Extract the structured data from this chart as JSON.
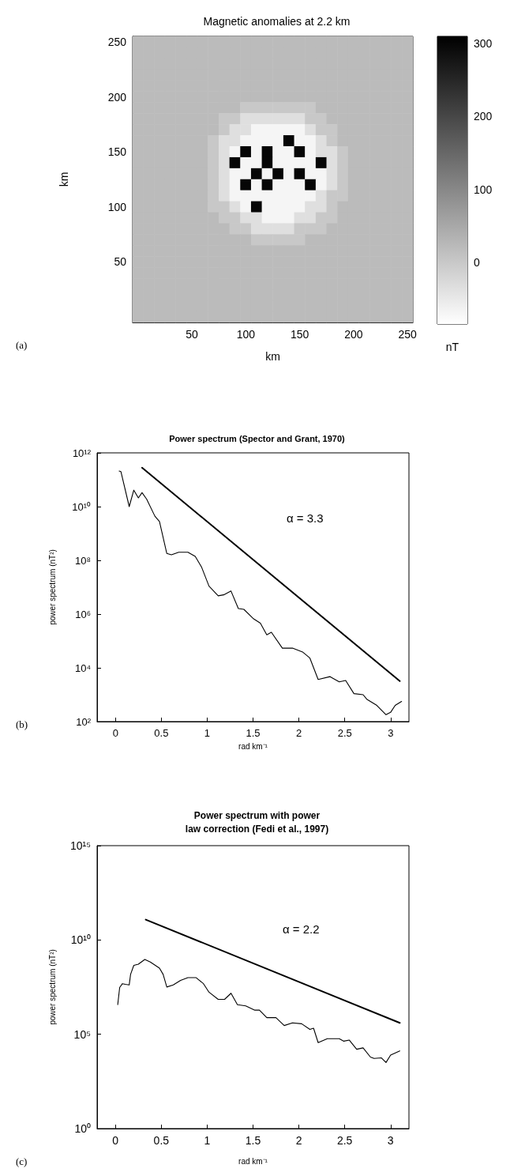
{
  "chart_data": [
    {
      "type": "heatmap",
      "title": "Magnetic anomalies at 2.2 km",
      "xlabel": "km",
      "ylabel": "km",
      "clabel": "nT",
      "annotations": [
        "(a)"
      ],
      "categories": [
        null,
        null,
        null,
        null,
        null,
        "50",
        null,
        null,
        null,
        null,
        "100",
        null,
        null,
        null,
        null,
        "150",
        null,
        null,
        null,
        null,
        "200",
        null,
        null,
        null,
        null,
        "250"
      ],
      "y_categories": [
        "250",
        null,
        null,
        null,
        null,
        "200",
        null,
        null,
        null,
        null,
        "150",
        null,
        null,
        null,
        null,
        "100",
        null,
        null,
        null,
        null,
        "50",
        null,
        null,
        null,
        null,
        null
      ],
      "clim": [
        -85,
        310
      ],
      "cticks": [
        0,
        100,
        200,
        300
      ],
      "cells": [
        [
          20,
          20,
          20,
          20,
          20,
          20,
          20,
          20,
          20,
          20,
          20,
          20,
          20,
          20,
          20,
          20,
          20,
          20,
          20,
          20,
          20,
          20,
          20,
          20,
          20,
          20
        ],
        [
          20,
          20,
          20,
          20,
          20,
          20,
          20,
          20,
          20,
          20,
          20,
          20,
          20,
          20,
          20,
          20,
          20,
          20,
          20,
          20,
          20,
          20,
          20,
          20,
          20,
          20
        ],
        [
          20,
          20,
          20,
          20,
          20,
          20,
          20,
          20,
          20,
          20,
          20,
          20,
          20,
          20,
          20,
          20,
          20,
          20,
          20,
          20,
          20,
          20,
          20,
          20,
          20,
          20
        ],
        [
          20,
          20,
          20,
          20,
          20,
          20,
          20,
          20,
          20,
          20,
          20,
          20,
          20,
          20,
          20,
          20,
          20,
          20,
          20,
          20,
          20,
          20,
          20,
          20,
          20,
          20
        ],
        [
          20,
          20,
          20,
          20,
          20,
          20,
          20,
          20,
          20,
          20,
          20,
          20,
          20,
          20,
          20,
          20,
          20,
          20,
          20,
          20,
          20,
          20,
          20,
          20,
          20,
          20
        ],
        [
          20,
          20,
          20,
          20,
          20,
          20,
          20,
          20,
          20,
          20,
          20,
          20,
          20,
          20,
          20,
          20,
          20,
          20,
          20,
          20,
          20,
          20,
          20,
          20,
          20,
          20
        ],
        [
          20,
          20,
          20,
          20,
          20,
          20,
          20,
          20,
          20,
          20,
          0,
          0,
          0,
          0,
          0,
          0,
          0,
          20,
          20,
          20,
          20,
          20,
          20,
          20,
          20,
          20
        ],
        [
          20,
          20,
          20,
          20,
          20,
          20,
          20,
          20,
          0,
          0,
          -35,
          -35,
          -35,
          -35,
          -35,
          -35,
          0,
          0,
          20,
          20,
          20,
          20,
          20,
          20,
          20,
          20
        ],
        [
          20,
          20,
          20,
          20,
          20,
          20,
          20,
          20,
          0,
          -35,
          -35,
          -70,
          -70,
          -70,
          -70,
          -70,
          -35,
          0,
          0,
          20,
          20,
          20,
          20,
          20,
          20,
          20
        ],
        [
          20,
          20,
          20,
          20,
          20,
          20,
          20,
          0,
          -35,
          -35,
          -70,
          -70,
          -70,
          -70,
          300,
          -70,
          -70,
          -35,
          0,
          20,
          20,
          20,
          20,
          20,
          20,
          20
        ],
        [
          20,
          20,
          20,
          20,
          20,
          20,
          20,
          0,
          -35,
          -70,
          300,
          -70,
          300,
          -70,
          -70,
          300,
          -70,
          -35,
          -35,
          0,
          20,
          20,
          20,
          20,
          20,
          20
        ],
        [
          20,
          20,
          20,
          20,
          20,
          20,
          20,
          0,
          -35,
          300,
          -70,
          -70,
          300,
          -70,
          -70,
          -70,
          -70,
          300,
          -35,
          0,
          20,
          20,
          20,
          20,
          20,
          20
        ],
        [
          20,
          20,
          20,
          20,
          20,
          20,
          20,
          0,
          -35,
          -70,
          -70,
          300,
          -70,
          300,
          -70,
          300,
          -70,
          -70,
          -35,
          0,
          20,
          20,
          20,
          20,
          20,
          20
        ],
        [
          20,
          20,
          20,
          20,
          20,
          20,
          20,
          0,
          -35,
          -70,
          300,
          -70,
          300,
          -70,
          -70,
          -70,
          300,
          -70,
          -35,
          0,
          20,
          20,
          20,
          20,
          20,
          20
        ],
        [
          20,
          20,
          20,
          20,
          20,
          20,
          20,
          0,
          -35,
          -70,
          -70,
          -70,
          -70,
          -70,
          -70,
          -70,
          -70,
          -35,
          0,
          0,
          20,
          20,
          20,
          20,
          20,
          20
        ],
        [
          20,
          20,
          20,
          20,
          20,
          20,
          20,
          0,
          0,
          -35,
          -70,
          300,
          -70,
          -70,
          -70,
          -70,
          -35,
          -35,
          0,
          20,
          20,
          20,
          20,
          20,
          20,
          20
        ],
        [
          20,
          20,
          20,
          20,
          20,
          20,
          20,
          20,
          0,
          0,
          -35,
          -35,
          -70,
          -70,
          -70,
          -35,
          -35,
          0,
          0,
          20,
          20,
          20,
          20,
          20,
          20,
          20
        ],
        [
          20,
          20,
          20,
          20,
          20,
          20,
          20,
          20,
          20,
          0,
          0,
          -35,
          -35,
          -35,
          -35,
          0,
          0,
          0,
          20,
          20,
          20,
          20,
          20,
          20,
          20,
          20
        ],
        [
          20,
          20,
          20,
          20,
          20,
          20,
          20,
          20,
          20,
          20,
          20,
          0,
          0,
          0,
          0,
          0,
          20,
          20,
          20,
          20,
          20,
          20,
          20,
          20,
          20,
          20
        ],
        [
          20,
          20,
          20,
          20,
          20,
          20,
          20,
          20,
          20,
          20,
          20,
          20,
          20,
          20,
          20,
          20,
          20,
          20,
          20,
          20,
          20,
          20,
          20,
          20,
          20,
          20
        ],
        [
          20,
          20,
          20,
          20,
          20,
          20,
          20,
          20,
          20,
          20,
          20,
          20,
          20,
          20,
          20,
          20,
          20,
          20,
          20,
          20,
          20,
          20,
          20,
          20,
          20,
          20
        ],
        [
          20,
          20,
          20,
          20,
          20,
          20,
          20,
          20,
          20,
          20,
          20,
          20,
          20,
          20,
          20,
          20,
          20,
          20,
          20,
          20,
          20,
          20,
          20,
          20,
          20,
          20
        ],
        [
          20,
          20,
          20,
          20,
          20,
          20,
          20,
          20,
          20,
          20,
          20,
          20,
          20,
          20,
          20,
          20,
          20,
          20,
          20,
          20,
          20,
          20,
          20,
          20,
          20,
          20
        ],
        [
          20,
          20,
          20,
          20,
          20,
          20,
          20,
          20,
          20,
          20,
          20,
          20,
          20,
          20,
          20,
          20,
          20,
          20,
          20,
          20,
          20,
          20,
          20,
          20,
          20,
          20
        ],
        [
          20,
          20,
          20,
          20,
          20,
          20,
          20,
          20,
          20,
          20,
          20,
          20,
          20,
          20,
          20,
          20,
          20,
          20,
          20,
          20,
          20,
          20,
          20,
          20,
          20,
          20
        ],
        [
          20,
          20,
          20,
          20,
          20,
          20,
          20,
          20,
          20,
          20,
          20,
          20,
          20,
          20,
          20,
          20,
          20,
          20,
          20,
          20,
          20,
          20,
          20,
          20,
          20,
          20
        ]
      ]
    },
    {
      "type": "line",
      "title": "Power spectrum (Spector and Grant, 1970)",
      "xlabel": "rad km⁻¹",
      "ylabel": "power spectrum (nT²)",
      "annotations": [
        "(b)",
        "α = 3.3"
      ],
      "log": "y",
      "xlim": [
        -0.2,
        3.2
      ],
      "xticks": [
        0,
        0.5,
        1,
        1.5,
        2,
        2.5,
        3
      ],
      "ylim": [
        100,
        1000000000000.0
      ],
      "yticks": [
        {
          "value": 100,
          "label": "10²"
        },
        {
          "value": 10000.0,
          "label": "10⁴"
        },
        {
          "value": 1000000.0,
          "label": "10⁶"
        },
        {
          "value": 100000000.0,
          "label": "10⁸"
        },
        {
          "value": 10000000000.0,
          "label": "10¹⁰"
        },
        {
          "value": 1000000000000.0,
          "label": "10¹²"
        }
      ],
      "series": [
        {
          "color": "#000000",
          "x": [
            0.04,
            0.06,
            0.15,
            0.2,
            0.25,
            0.29,
            0.34,
            0.43,
            0.48,
            0.56,
            0.61,
            0.69,
            0.79,
            0.87,
            0.94,
            1.02,
            1.12,
            1.18,
            1.26,
            1.34,
            1.4,
            1.5,
            1.58,
            1.65,
            1.7,
            1.82,
            1.93,
            2.04,
            2.12,
            2.21,
            2.34,
            2.44,
            2.51,
            2.6,
            2.7,
            2.74,
            2.85,
            2.95,
            3.0,
            3.05,
            3.12
          ],
          "values": [
            210000000000.0,
            200000000000.0,
            10000000000.0,
            41000000000.0,
            21000000000.0,
            33000000000.0,
            19000000000.0,
            4400000000.0,
            2800000000.0,
            180000000.0,
            160000000.0,
            200000000.0,
            200000000.0,
            140000000.0,
            55000000.0,
            11000000.0,
            4800000.0,
            5200000.0,
            7200000.0,
            1600000.0,
            1500000.0,
            690000.0,
            460000.0,
            170000.0,
            210000.0,
            54000.0,
            54000.0,
            39000.0,
            23000.0,
            3700.0,
            4700.0,
            3000.0,
            3400.0,
            1100.0,
            1000.0,
            680,
            400,
            180,
            220,
            400,
            560
          ]
        },
        {
          "color": "#000000",
          "x": [
            0.29,
            3.1
          ],
          "values": [
            280000000000.0,
            3200.0
          ]
        }
      ]
    },
    {
      "type": "line",
      "title": "Power spectrum with power\nlaw correction (Fedi et al., 1997)",
      "xlabel": "rad km⁻¹",
      "ylabel": "power spectrum (nT²)",
      "annotations": [
        "(c)",
        "α = 2.2"
      ],
      "log": "y",
      "xlim": [
        -0.2,
        3.2
      ],
      "xticks": [
        0,
        0.5,
        1,
        1.5,
        2,
        2.5,
        3
      ],
      "ylim": [
        1,
        1000000000000000.0
      ],
      "yticks": [
        {
          "value": 1,
          "label": "10⁰"
        },
        {
          "value": 100000.0,
          "label": "10⁵"
        },
        {
          "value": 10000000000.0,
          "label": "10¹⁰"
        },
        {
          "value": 1000000000000000.0,
          "label": "10¹⁵"
        }
      ],
      "series": [
        {
          "color": "#000000",
          "x": [
            0.025,
            0.046,
            0.076,
            0.11,
            0.15,
            0.165,
            0.2,
            0.25,
            0.32,
            0.38,
            0.48,
            0.52,
            0.56,
            0.63,
            0.71,
            0.79,
            0.88,
            0.96,
            1.02,
            1.12,
            1.19,
            1.26,
            1.33,
            1.42,
            1.52,
            1.57,
            1.65,
            1.75,
            1.84,
            1.93,
            2.03,
            2.12,
            2.16,
            2.21,
            2.31,
            2.44,
            2.49,
            2.55,
            2.63,
            2.7,
            2.78,
            2.82,
            2.9,
            2.95,
            3.0,
            3.1
          ],
          "values": [
            3700000.0,
            30000000.0,
            48000000.0,
            44000000.0,
            41000000.0,
            150000000.0,
            450000000.0,
            520000000.0,
            930000000.0,
            680000000.0,
            320000000.0,
            150000000.0,
            32000000.0,
            41000000.0,
            72000000.0,
            100000000.0,
            100000000.0,
            48000000.0,
            17000000.0,
            7100000.0,
            7100000.0,
            15000000.0,
            3700000.0,
            3200000.0,
            1900000.0,
            1900000.0,
            760000.0,
            760000.0,
            290000.0,
            400000.0,
            360000.0,
            180000.0,
            210000.0,
            36000.0,
            58000.0,
            58000.0,
            43000.0,
            49000.0,
            16000.0,
            19000.0,
            6200.0,
            5200.0,
            5600.0,
            3200.0,
            7900.0,
            13000.0
          ]
        },
        {
          "color": "#000000",
          "x": [
            0.33,
            3.1
          ],
          "values": [
            120000000000.0,
            400000.0
          ]
        }
      ]
    }
  ]
}
